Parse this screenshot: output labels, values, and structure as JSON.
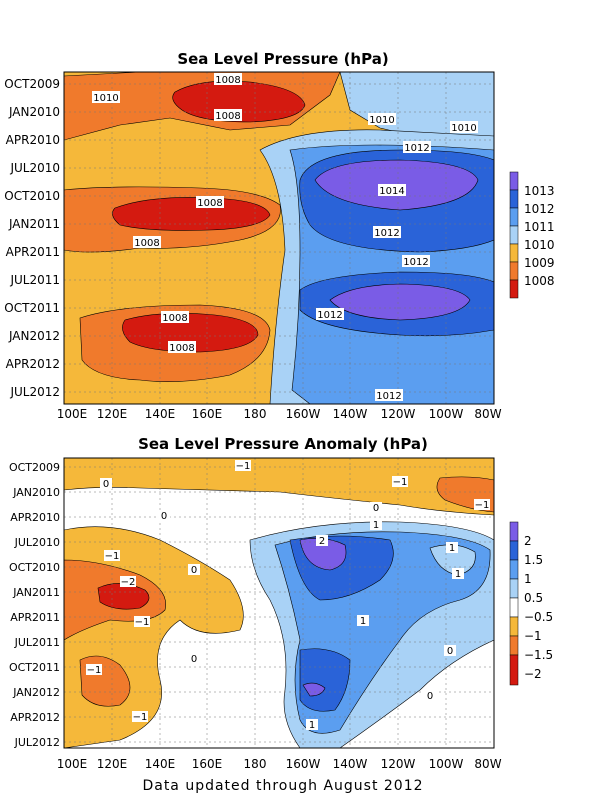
{
  "chart_data": [
    {
      "type": "heatmap",
      "title": "Sea Level Pressure (hPa)",
      "x_ticks": [
        "100E",
        "120E",
        "140E",
        "160E",
        "180",
        "160W",
        "140W",
        "120W",
        "100W",
        "80W"
      ],
      "y_ticks": [
        "OCT2009",
        "JAN2010",
        "APR2010",
        "JUL2010",
        "OCT2010",
        "JAN2011",
        "APR2011",
        "JUL2011",
        "OCT2011",
        "JAN2012",
        "APR2012",
        "JUL2012"
      ],
      "colorbar": {
        "labels": [
          "1013",
          "1012",
          "1011",
          "1010",
          "1009",
          "1008"
        ],
        "colors": [
          "#7a5ce6",
          "#2a63d8",
          "#5b9ef0",
          "#a9d2f6",
          "#f5b83a",
          "#f07a2c",
          "#d41a10"
        ]
      },
      "contour_labels": [
        "1008",
        "1008",
        "1010",
        "1010",
        "1010",
        "1012",
        "1014",
        "1008",
        "1008",
        "1012",
        "1012",
        "1012",
        "1008",
        "1008",
        "1012"
      ],
      "xlim": [
        "100E",
        "80W"
      ],
      "ylim": [
        "OCT2009",
        "JUL2012"
      ]
    },
    {
      "type": "heatmap",
      "title": "Sea Level Pressure Anomaly (hPa)",
      "x_ticks": [
        "100E",
        "120E",
        "140E",
        "160E",
        "180",
        "160W",
        "140W",
        "120W",
        "100W",
        "80W"
      ],
      "y_ticks": [
        "OCT2009",
        "JAN2010",
        "APR2010",
        "JUL2010",
        "OCT2010",
        "JAN2011",
        "APR2011",
        "JUL2011",
        "OCT2011",
        "JAN2012",
        "APR2012",
        "JUL2012"
      ],
      "colorbar": {
        "labels": [
          "2",
          "1.5",
          "1",
          "0.5",
          "−0.5",
          "−1",
          "−1.5",
          "−2"
        ],
        "colors": [
          "#7a5ce6",
          "#2a63d8",
          "#5b9ef0",
          "#a9d2f6",
          "#ffffff",
          "#f5b83a",
          "#f07a2c",
          "#d41a10"
        ]
      },
      "contour_labels": [
        "−1",
        "−1",
        "0",
        "−1",
        "0",
        "0",
        "1",
        "2",
        "−1",
        "1",
        "0",
        "1",
        "−2",
        "−1",
        "1",
        "0",
        "−1",
        "0",
        "0",
        "−1",
        "1"
      ],
      "xlim": [
        "100E",
        "80W"
      ],
      "ylim": [
        "OCT2009",
        "JUL2012"
      ]
    }
  ],
  "footer": "Data updated through August 2012"
}
